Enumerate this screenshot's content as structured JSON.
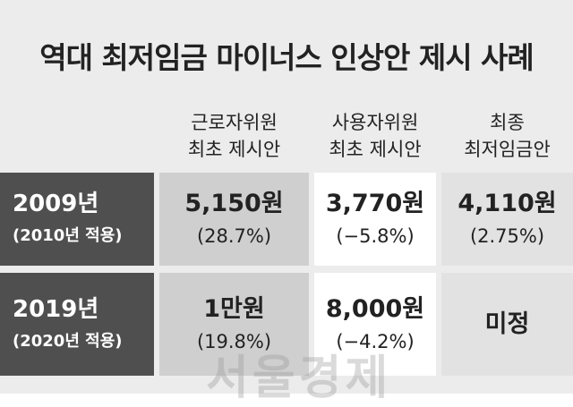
{
  "title": "역대 최저임금 마이너스 인상안 제시 사례",
  "table": {
    "headers": [
      [
        "근로자위원",
        "최초 제시안"
      ],
      [
        "사용자위원",
        "최초 제시안"
      ],
      [
        "최종",
        "최저임금안"
      ]
    ],
    "rows": [
      {
        "year": "2009년",
        "applied": "(2010년 적용)",
        "cells": [
          [
            "5,150원",
            "(28.7%)"
          ],
          [
            "3,770원",
            "(−5.8%)"
          ],
          [
            "4,110원",
            "(2.75%)"
          ]
        ]
      },
      {
        "year": "2019년",
        "applied": "(2020년 적용)",
        "cells": [
          [
            "1만원",
            "(19.8%)"
          ],
          [
            "8,000원",
            "(−4.2%)"
          ],
          [
            "미정"
          ]
        ]
      }
    ]
  },
  "watermark": "서울경제"
}
